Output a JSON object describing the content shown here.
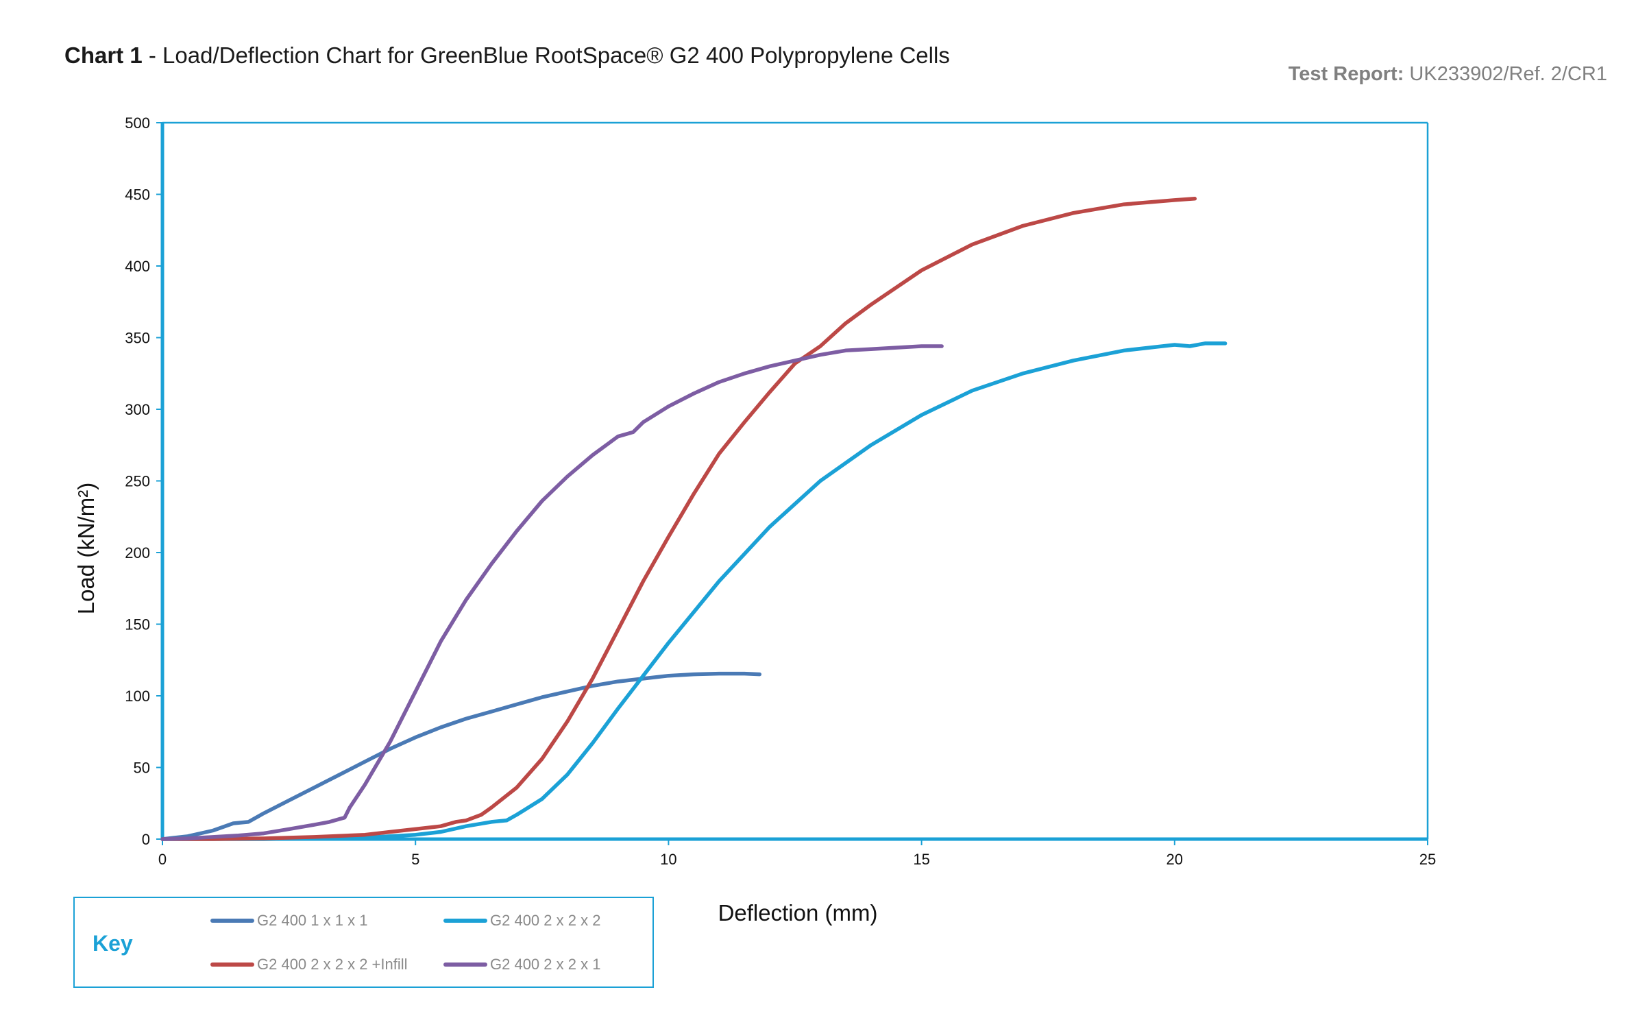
{
  "header": {
    "title_bold": "Chart 1",
    "title_rest": " - Load/Deflection Chart for GreenBlue RootSpace® G2 400 Polypropylene Cells",
    "report_label": "Test Report:",
    "report_value": " UK233902/Ref. 2/CR1"
  },
  "key": {
    "title": "Key",
    "items": [
      {
        "label": "G2 400 1 x 1 x 1",
        "color": "#4a7ab5"
      },
      {
        "label": "G2 400 2 x 2 x 2",
        "color": "#1ba1d6"
      },
      {
        "label": "G2 400 2 x 2 x 2 +Infill",
        "color": "#bc4846"
      },
      {
        "label": "G2 400 2 x 2 x 1",
        "color": "#7d5da3"
      }
    ]
  },
  "chart_data": {
    "type": "line",
    "title": "Load/Deflection Chart for GreenBlue RootSpace® G2 400 Polypropylene Cells",
    "xlabel": "Deflection (mm)",
    "ylabel": "Load (kN/m²)",
    "xlim": [
      0,
      25
    ],
    "ylim": [
      0,
      500
    ],
    "xticks": [
      0,
      5,
      10,
      15,
      20,
      25
    ],
    "yticks": [
      0,
      50,
      100,
      150,
      200,
      250,
      300,
      350,
      400,
      450,
      500
    ],
    "grid": false,
    "legend_position": "bottom-left",
    "frame_color": "#1ba1d6",
    "series": [
      {
        "name": "G2 400 1 x 1 x 1",
        "color": "#4a7ab5",
        "x": [
          0,
          0.5,
          1.0,
          1.4,
          1.7,
          2.0,
          2.5,
          3.0,
          3.5,
          4.0,
          4.5,
          5.0,
          5.5,
          6.0,
          6.5,
          7.0,
          7.5,
          8.0,
          8.5,
          9.0,
          9.5,
          10.0,
          10.5,
          11.0,
          11.5,
          11.8
        ],
        "y": [
          0,
          2,
          6,
          11,
          12,
          18,
          27,
          36,
          45,
          54,
          63,
          71,
          78,
          84,
          89,
          94,
          99,
          103,
          107,
          110,
          112,
          114,
          115,
          115.5,
          115.5,
          115
        ]
      },
      {
        "name": "G2 400 2 x 2 x 2",
        "color": "#1ba1d6",
        "x": [
          0,
          1,
          2,
          3,
          4,
          5,
          5.5,
          6.0,
          6.5,
          6.8,
          7.0,
          7.5,
          8.0,
          8.5,
          9.0,
          9.5,
          10.0,
          11.0,
          12.0,
          13.0,
          14.0,
          15.0,
          16.0,
          17.0,
          18.0,
          19.0,
          20.0,
          20.3,
          20.6,
          21.0
        ],
        "y": [
          0,
          0,
          0,
          0.5,
          1,
          3,
          5,
          9,
          12,
          13,
          17,
          28,
          45,
          67,
          91,
          114,
          137,
          180,
          218,
          250,
          275,
          296,
          313,
          325,
          334,
          341,
          345,
          344,
          346,
          346
        ]
      },
      {
        "name": "G2 400 2 x 2 x 2 +Infill",
        "color": "#bc4846",
        "x": [
          0,
          1,
          2,
          3,
          4,
          4.5,
          5.0,
          5.5,
          5.8,
          6.0,
          6.3,
          6.5,
          7.0,
          7.5,
          8.0,
          8.5,
          9.0,
          9.5,
          10.0,
          10.5,
          11.0,
          11.5,
          12.0,
          12.5,
          13.0,
          13.5,
          14.0,
          15.0,
          16.0,
          17.0,
          18.0,
          19.0,
          20.0,
          20.4
        ],
        "y": [
          0,
          0,
          0.5,
          1.5,
          3,
          5,
          7,
          9,
          12,
          13,
          17,
          22,
          36,
          56,
          82,
          112,
          146,
          180,
          211,
          241,
          269,
          291,
          312,
          332,
          344,
          360,
          373,
          397,
          415,
          428,
          437,
          443,
          446,
          447
        ]
      },
      {
        "name": "G2 400 2 x 2 x 1",
        "color": "#7d5da3",
        "x": [
          0,
          0.5,
          1.0,
          1.5,
          2.0,
          2.5,
          3.0,
          3.3,
          3.5,
          3.6,
          3.7,
          4.0,
          4.5,
          5.0,
          5.5,
          6.0,
          6.5,
          7.0,
          7.5,
          8.0,
          8.5,
          9.0,
          9.3,
          9.5,
          10.0,
          10.5,
          11.0,
          11.5,
          12.0,
          12.5,
          13.0,
          13.5,
          14.0,
          14.5,
          15.0,
          15.4
        ],
        "y": [
          0,
          0.5,
          1.5,
          2.5,
          4,
          7,
          10,
          12,
          14,
          15,
          22,
          38,
          68,
          103,
          138,
          167,
          192,
          215,
          236,
          253,
          268,
          281,
          284,
          291,
          302,
          311,
          319,
          325,
          330,
          334,
          338,
          341,
          342,
          343,
          344,
          344
        ]
      }
    ]
  }
}
